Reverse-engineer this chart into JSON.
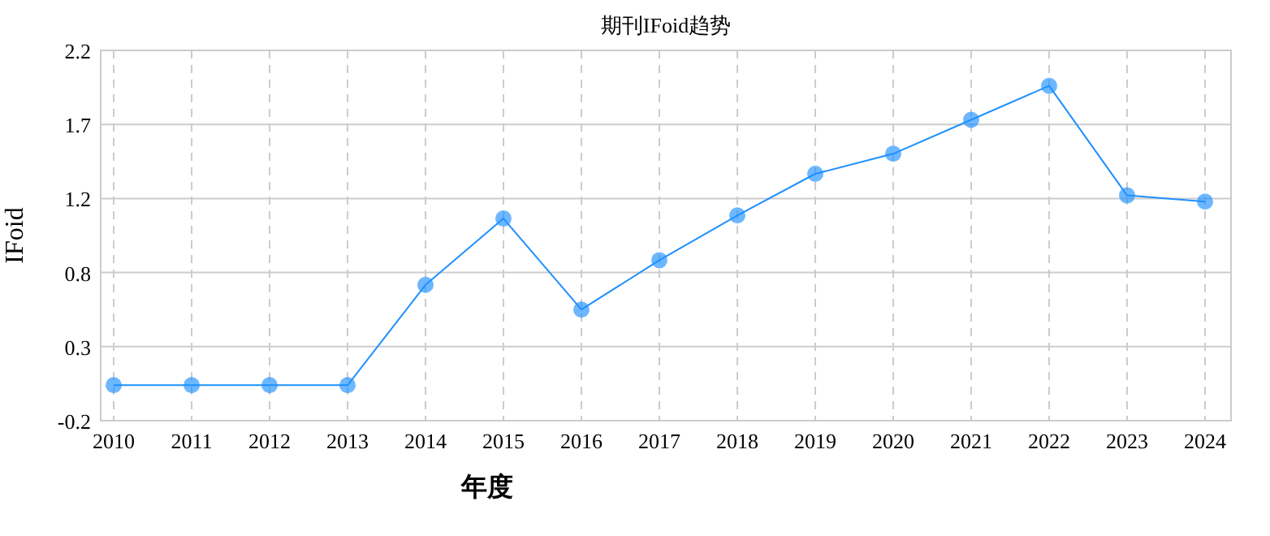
{
  "chart_data": {
    "type": "line",
    "title": "期刊IFoid趋势",
    "xlabel": "年度",
    "ylabel": "IFoid",
    "categories": [
      "2010",
      "2011",
      "2012",
      "2013",
      "2014",
      "2015",
      "2016",
      "2017",
      "2018",
      "2019",
      "2020",
      "2021",
      "2022",
      "2023",
      "2024"
    ],
    "series": [
      {
        "color": "#1e90ff",
        "values": [
          0.03,
          0.03,
          0.03,
          0.03,
          0.68,
          1.11,
          0.52,
          0.84,
          1.13,
          1.4,
          1.53,
          1.75,
          1.97,
          1.26,
          1.22
        ]
      }
    ],
    "ylim": [
      -0.2,
      2.2
    ],
    "yticks": [
      -0.2,
      {
        "value": 0.28,
        "label": "0.3"
      },
      {
        "value": 0.76,
        "label": "0.8"
      },
      {
        "value": 1.24,
        "label": "1.2"
      },
      {
        "value": 1.72,
        "label": "1.7"
      },
      2.2
    ],
    "grid": true,
    "marker": "circle",
    "line_style": "solid"
  }
}
